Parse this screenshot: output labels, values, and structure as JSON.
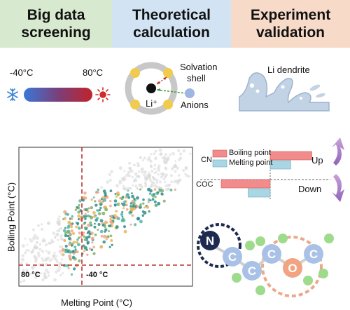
{
  "headers": {
    "screening": {
      "line1": "Big data",
      "line2": "screening",
      "bg": "#d7e9cf"
    },
    "calculation": {
      "line1": "Theoretical",
      "line2": "calculation",
      "bg": "#d2e4f3"
    },
    "validation": {
      "line1": "Experiment",
      "line2": "validation",
      "bg": "#f7dac8"
    }
  },
  "temperature": {
    "low": "-40°C",
    "high": "80°C"
  },
  "solvation": {
    "center": "Li⁺",
    "shell_label_1": "Solvation",
    "shell_label_2": "shell",
    "anion_label": "Anions"
  },
  "dendrite": {
    "label": "Li dendrite"
  },
  "scatter": {
    "xlabel": "Melting Point (°C)",
    "ylabel": "Boiling Point (°C)",
    "threshold_x_label": "-40 °C",
    "threshold_y_label": "80 °C"
  },
  "bar_chart": {
    "legend_boiling": "Boiling point",
    "legend_melting": "Melting point",
    "rows": [
      {
        "label": "CN",
        "direction": "Up",
        "boiling": 0.85,
        "melting": 0.42
      },
      {
        "label": "COC",
        "direction": "Down",
        "boiling": -1.0,
        "melting": -0.45
      }
    ],
    "colors": {
      "boiling": "#f28b8b",
      "melting": "#a9d6e4"
    }
  },
  "molecule": {
    "atoms": [
      "N",
      "C",
      "C",
      "C",
      "O",
      "C"
    ]
  }
}
